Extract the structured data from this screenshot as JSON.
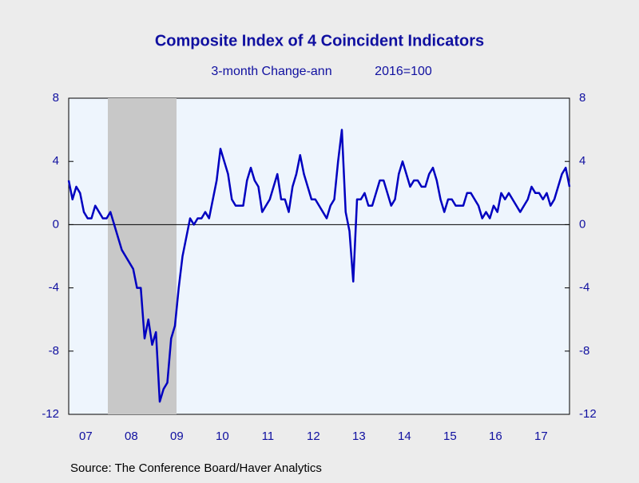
{
  "chart_data": {
    "type": "line",
    "title": "Composite Index of 4 Coincident Indicators",
    "subtitle": [
      "3-month Change-ann",
      "2016=100"
    ],
    "source": "Source:  The Conference Board/Haver Analytics",
    "categories": [
      null,
      null,
      null,
      null,
      null,
      "07",
      null,
      null,
      null,
      null,
      null,
      null,
      null,
      null,
      null,
      null,
      null,
      "08",
      null,
      null,
      null,
      null,
      null,
      null,
      null,
      null,
      null,
      null,
      null,
      "09",
      null,
      null,
      null,
      null,
      null,
      null,
      null,
      null,
      null,
      null,
      null,
      "10",
      null,
      null,
      null,
      null,
      null,
      null,
      null,
      null,
      null,
      null,
      null,
      "11",
      null,
      null,
      null,
      null,
      null,
      null,
      null,
      null,
      null,
      null,
      null,
      "12",
      null,
      null,
      null,
      null,
      null,
      null,
      null,
      null,
      null,
      null,
      null,
      "13",
      null,
      null,
      null,
      null,
      null,
      null,
      null,
      null,
      null,
      null,
      null,
      "14",
      null,
      null,
      null,
      null,
      null,
      null,
      null,
      null,
      null,
      null,
      null,
      "15",
      null,
      null,
      null,
      null,
      null,
      null,
      null,
      null,
      null,
      null,
      null,
      "16",
      null,
      null,
      null,
      null,
      null,
      null,
      null,
      null,
      null,
      null,
      null,
      "17",
      null,
      null,
      null,
      null,
      null,
      null,
      null
    ],
    "values": [
      2.8,
      1.6,
      2.4,
      2.0,
      0.8,
      0.4,
      0.4,
      1.2,
      0.8,
      0.4,
      0.4,
      0.8,
      0,
      -0.8,
      -1.6,
      -2.0,
      -2.4,
      -2.8,
      -4.0,
      -4.0,
      -7.2,
      -6.0,
      -7.6,
      -6.8,
      -11.2,
      -10.4,
      -10.0,
      -7.2,
      -6.4,
      -4.0,
      -2.0,
      -0.8,
      0.4,
      0.0,
      0.4,
      0.4,
      0.8,
      0.4,
      1.6,
      2.8,
      4.8,
      4.0,
      3.2,
      1.6,
      1.2,
      1.2,
      1.2,
      2.8,
      3.6,
      2.8,
      2.4,
      0.8,
      1.2,
      1.6,
      2.4,
      3.2,
      1.6,
      1.6,
      0.8,
      2.4,
      3.2,
      4.4,
      3.2,
      2.4,
      1.6,
      1.6,
      1.2,
      0.8,
      0.4,
      1.2,
      1.6,
      4.0,
      6.0,
      0.8,
      -0.4,
      -3.6,
      1.6,
      1.6,
      2.0,
      1.2,
      1.2,
      2.0,
      2.8,
      2.8,
      2.0,
      1.2,
      1.6,
      3.2,
      4.0,
      3.2,
      2.4,
      2.8,
      2.8,
      2.4,
      2.4,
      3.2,
      3.6,
      2.8,
      1.6,
      0.8,
      1.6,
      1.6,
      1.2,
      1.2,
      1.2,
      2.0,
      2.0,
      1.6,
      1.2,
      0.4,
      0.8,
      0.4,
      1.2,
      0.8,
      2.0,
      1.6,
      2.0,
      1.6,
      1.2,
      0.8,
      1.2,
      1.6,
      2.4,
      2.0,
      2.0,
      1.6,
      2.0,
      1.2,
      1.6,
      2.4,
      3.2,
      3.6,
      2.4
    ],
    "color": "#0000c0",
    "ylim": [
      -12,
      8
    ],
    "yticks": [
      8,
      4,
      0,
      -4,
      -8,
      -12
    ],
    "y2lim": [
      -12,
      8
    ],
    "y2ticks": [
      8,
      4,
      0,
      -4,
      -8,
      -12
    ]
  }
}
